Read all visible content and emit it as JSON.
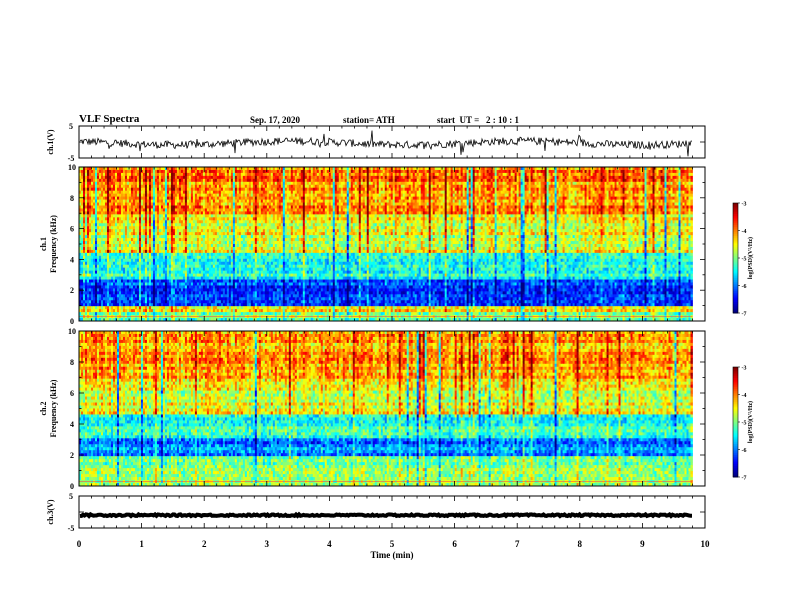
{
  "header": {
    "title": "VLF Spectra",
    "date": "Sep. 17, 2020",
    "station": "station= ATH",
    "start": "start  UT =   2 : 10 : 1"
  },
  "chart_data": [
    {
      "type": "line",
      "ylabel": "ch.1(V)",
      "ylim": [
        -5,
        5
      ],
      "yticks": [
        "5",
        "-5"
      ],
      "xlim": [
        0,
        10
      ],
      "series_note": "noisy waveform around -0.5 V"
    },
    {
      "type": "heatmap",
      "ylabel": "ch.1  Frequency  (kHz)",
      "ylim": [
        0,
        10
      ],
      "yticks": [
        "0",
        "2",
        "4",
        "6",
        "8",
        "10"
      ],
      "xlim": [
        0,
        9.8
      ],
      "colorbar": {
        "label": "log(PSD)(V²/Hz)",
        "range": [
          -7,
          -3
        ],
        "ticks": [
          "-3",
          "-4",
          "-5",
          "-6",
          "-7"
        ]
      },
      "bands": [
        {
          "from": 0.0,
          "to": 0.6,
          "level": -5.0
        },
        {
          "from": 0.6,
          "to": 1.0,
          "level": -4.3
        },
        {
          "from": 1.0,
          "to": 2.6,
          "level": -6.2
        },
        {
          "from": 2.6,
          "to": 4.5,
          "level": -5.4
        },
        {
          "from": 4.5,
          "to": 7.0,
          "level": -4.6
        },
        {
          "from": 7.0,
          "to": 10.0,
          "level": -4.0
        }
      ]
    },
    {
      "type": "heatmap",
      "ylabel": "ch.2  Frequency  (kHz)",
      "ylim": [
        0,
        10
      ],
      "yticks": [
        "0",
        "2",
        "4",
        "6",
        "8",
        "10"
      ],
      "xlim": [
        0,
        9.8
      ],
      "colorbar": {
        "label": "log(PSD)(V²/Hz)",
        "range": [
          -7,
          -3
        ],
        "ticks": [
          "-3",
          "-4",
          "-5",
          "-6",
          "-7"
        ]
      },
      "bands": [
        {
          "from": 0.0,
          "to": 0.6,
          "level": -5.0
        },
        {
          "from": 0.6,
          "to": 2.0,
          "level": -4.9
        },
        {
          "from": 2.0,
          "to": 3.0,
          "level": -6.0
        },
        {
          "from": 3.0,
          "to": 4.6,
          "level": -5.3
        },
        {
          "from": 4.6,
          "to": 7.0,
          "level": -4.6
        },
        {
          "from": 7.0,
          "to": 10.0,
          "level": -4.1
        }
      ]
    },
    {
      "type": "line",
      "ylabel": "ch.3(V)",
      "ylim": [
        -5,
        5
      ],
      "yticks": [
        "5",
        "-5"
      ],
      "xlim": [
        0,
        10
      ],
      "series_note": "thick flat trace near -1 V"
    }
  ],
  "xaxis": {
    "label": "Time  (min)",
    "ticks": [
      "0",
      "1",
      "2",
      "3",
      "4",
      "5",
      "6",
      "7",
      "8",
      "9",
      "10"
    ]
  }
}
